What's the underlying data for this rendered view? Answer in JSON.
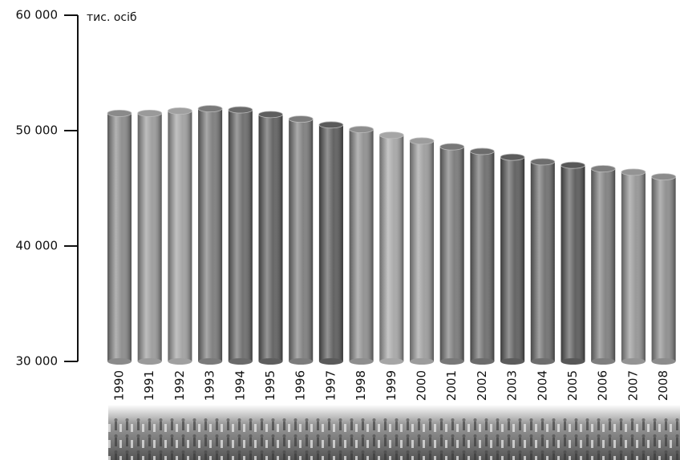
{
  "chart_data": {
    "type": "bar",
    "unit_label": "тис. осіб",
    "categories": [
      "1990",
      "1991",
      "1992",
      "1993",
      "1994",
      "1995",
      "1996",
      "1997",
      "1998",
      "1999",
      "2000",
      "2001",
      "2002",
      "2003",
      "2004",
      "2005",
      "2006",
      "2007",
      "2008"
    ],
    "values": [
      51500,
      51500,
      51700,
      51900,
      51800,
      51400,
      51000,
      50500,
      50100,
      49600,
      49100,
      48600,
      48200,
      47700,
      47300,
      47000,
      46700,
      46400,
      46000
    ],
    "colors": [
      "#8a8a8a",
      "#9a9a9a",
      "#a0a0a0",
      "#7a7a7a",
      "#6a6a6a",
      "#5e5e5e",
      "#7c7c7c",
      "#5a5a5a",
      "#8e8e8e",
      "#a6a6a6",
      "#9c9c9c",
      "#787878",
      "#6c6c6c",
      "#5c5c5c",
      "#6e6e6e",
      "#585858",
      "#7e7e7e",
      "#949494",
      "#8c8c8c"
    ],
    "ylim": [
      30000,
      60000
    ],
    "yticks": [
      {
        "value": 30000,
        "label": "30 000"
      },
      {
        "value": 40000,
        "label": "40 000"
      },
      {
        "value": 50000,
        "label": "50 000"
      },
      {
        "value": 60000,
        "label": "60 000"
      }
    ]
  }
}
